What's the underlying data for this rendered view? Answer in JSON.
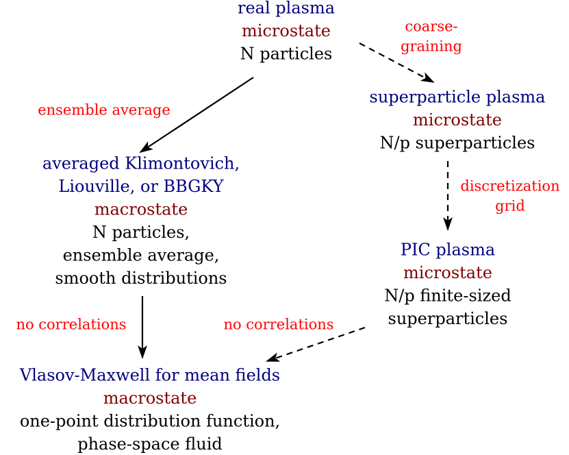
{
  "nodes": [
    {
      "title": [
        "real plasma"
      ],
      "state": "microstate",
      "desc": [
        "N particles"
      ]
    },
    {
      "title": [
        "superparticle plasma"
      ],
      "state": "microstate",
      "desc": [
        "N/p superparticles"
      ]
    },
    {
      "title": [
        "averaged Klimontovich,",
        "Liouville, or BBGKY"
      ],
      "state": "macrostate",
      "desc": [
        "N particles,",
        "ensemble average,",
        "smooth distributions"
      ]
    },
    {
      "title": [
        "PIC plasma"
      ],
      "state": "microstate",
      "desc": [
        "N/p finite-sized",
        "superparticles"
      ]
    },
    {
      "title": [
        "Vlasov-Maxwell for mean fields"
      ],
      "state": "macrostate",
      "desc": [
        "one-point distribution function,",
        "phase-space fluid"
      ]
    }
  ],
  "edges": [
    {
      "label": [
        "coarse-",
        "graining"
      ]
    },
    {
      "label": [
        "ensemble average"
      ]
    },
    {
      "label": [
        "discretization",
        "grid"
      ]
    },
    {
      "label": [
        "no correlations"
      ]
    },
    {
      "label": [
        "no correlations"
      ]
    }
  ]
}
